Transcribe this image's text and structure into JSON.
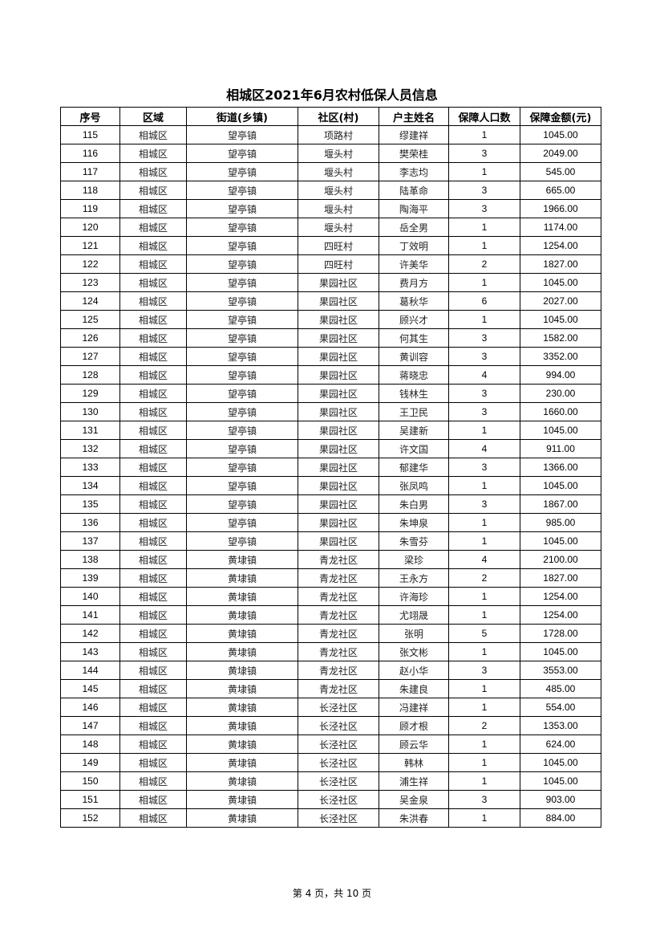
{
  "title": "相城区2021年6月农村低保人员信息",
  "headers": [
    "序号",
    "区域",
    "街道(乡镇)",
    "社区(村)",
    "户主姓名",
    "保障人口数",
    "保障金额(元)"
  ],
  "rows": [
    [
      "115",
      "相城区",
      "望亭镇",
      "项路村",
      "缪建祥",
      "1",
      "1045.00"
    ],
    [
      "116",
      "相城区",
      "望亭镇",
      "堰头村",
      "樊荣桂",
      "3",
      "2049.00"
    ],
    [
      "117",
      "相城区",
      "望亭镇",
      "堰头村",
      "李志均",
      "1",
      "545.00"
    ],
    [
      "118",
      "相城区",
      "望亭镇",
      "堰头村",
      "陆革命",
      "3",
      "665.00"
    ],
    [
      "119",
      "相城区",
      "望亭镇",
      "堰头村",
      "陶海平",
      "3",
      "1966.00"
    ],
    [
      "120",
      "相城区",
      "望亭镇",
      "堰头村",
      "岳全男",
      "1",
      "1174.00"
    ],
    [
      "121",
      "相城区",
      "望亭镇",
      "四旺村",
      "丁效明",
      "1",
      "1254.00"
    ],
    [
      "122",
      "相城区",
      "望亭镇",
      "四旺村",
      "许美华",
      "2",
      "1827.00"
    ],
    [
      "123",
      "相城区",
      "望亭镇",
      "果园社区",
      "费月方",
      "1",
      "1045.00"
    ],
    [
      "124",
      "相城区",
      "望亭镇",
      "果园社区",
      "葛秋华",
      "6",
      "2027.00"
    ],
    [
      "125",
      "相城区",
      "望亭镇",
      "果园社区",
      "顾兴才",
      "1",
      "1045.00"
    ],
    [
      "126",
      "相城区",
      "望亭镇",
      "果园社区",
      "何其生",
      "3",
      "1582.00"
    ],
    [
      "127",
      "相城区",
      "望亭镇",
      "果园社区",
      "黄训容",
      "3",
      "3352.00"
    ],
    [
      "128",
      "相城区",
      "望亭镇",
      "果园社区",
      "蒋晓忠",
      "4",
      "994.00"
    ],
    [
      "129",
      "相城区",
      "望亭镇",
      "果园社区",
      "钱林生",
      "3",
      "230.00"
    ],
    [
      "130",
      "相城区",
      "望亭镇",
      "果园社区",
      "王卫民",
      "3",
      "1660.00"
    ],
    [
      "131",
      "相城区",
      "望亭镇",
      "果园社区",
      "吴建新",
      "1",
      "1045.00"
    ],
    [
      "132",
      "相城区",
      "望亭镇",
      "果园社区",
      "许文国",
      "4",
      "911.00"
    ],
    [
      "133",
      "相城区",
      "望亭镇",
      "果园社区",
      "郁建华",
      "3",
      "1366.00"
    ],
    [
      "134",
      "相城区",
      "望亭镇",
      "果园社区",
      "张凤鸣",
      "1",
      "1045.00"
    ],
    [
      "135",
      "相城区",
      "望亭镇",
      "果园社区",
      "朱白男",
      "3",
      "1867.00"
    ],
    [
      "136",
      "相城区",
      "望亭镇",
      "果园社区",
      "朱坤泉",
      "1",
      "985.00"
    ],
    [
      "137",
      "相城区",
      "望亭镇",
      "果园社区",
      "朱雪芬",
      "1",
      "1045.00"
    ],
    [
      "138",
      "相城区",
      "黄埭镇",
      "青龙社区",
      "梁珍",
      "4",
      "2100.00"
    ],
    [
      "139",
      "相城区",
      "黄埭镇",
      "青龙社区",
      "王永方",
      "2",
      "1827.00"
    ],
    [
      "140",
      "相城区",
      "黄埭镇",
      "青龙社区",
      "许海珍",
      "1",
      "1254.00"
    ],
    [
      "141",
      "相城区",
      "黄埭镇",
      "青龙社区",
      "尤翊晟",
      "1",
      "1254.00"
    ],
    [
      "142",
      "相城区",
      "黄埭镇",
      "青龙社区",
      "张明",
      "5",
      "1728.00"
    ],
    [
      "143",
      "相城区",
      "黄埭镇",
      "青龙社区",
      "张文彬",
      "1",
      "1045.00"
    ],
    [
      "144",
      "相城区",
      "黄埭镇",
      "青龙社区",
      "赵小华",
      "3",
      "3553.00"
    ],
    [
      "145",
      "相城区",
      "黄埭镇",
      "青龙社区",
      "朱建良",
      "1",
      "485.00"
    ],
    [
      "146",
      "相城区",
      "黄埭镇",
      "长泾社区",
      "冯建祥",
      "1",
      "554.00"
    ],
    [
      "147",
      "相城区",
      "黄埭镇",
      "长泾社区",
      "顾才根",
      "2",
      "1353.00"
    ],
    [
      "148",
      "相城区",
      "黄埭镇",
      "长泾社区",
      "顾云华",
      "1",
      "624.00"
    ],
    [
      "149",
      "相城区",
      "黄埭镇",
      "长泾社区",
      "韩林",
      "1",
      "1045.00"
    ],
    [
      "150",
      "相城区",
      "黄埭镇",
      "长泾社区",
      "浦生祥",
      "1",
      "1045.00"
    ],
    [
      "151",
      "相城区",
      "黄埭镇",
      "长泾社区",
      "吴金泉",
      "3",
      "903.00"
    ],
    [
      "152",
      "相城区",
      "黄埭镇",
      "长泾社区",
      "朱洪春",
      "1",
      "884.00"
    ]
  ],
  "footer": "第 4 页，共 10 页"
}
